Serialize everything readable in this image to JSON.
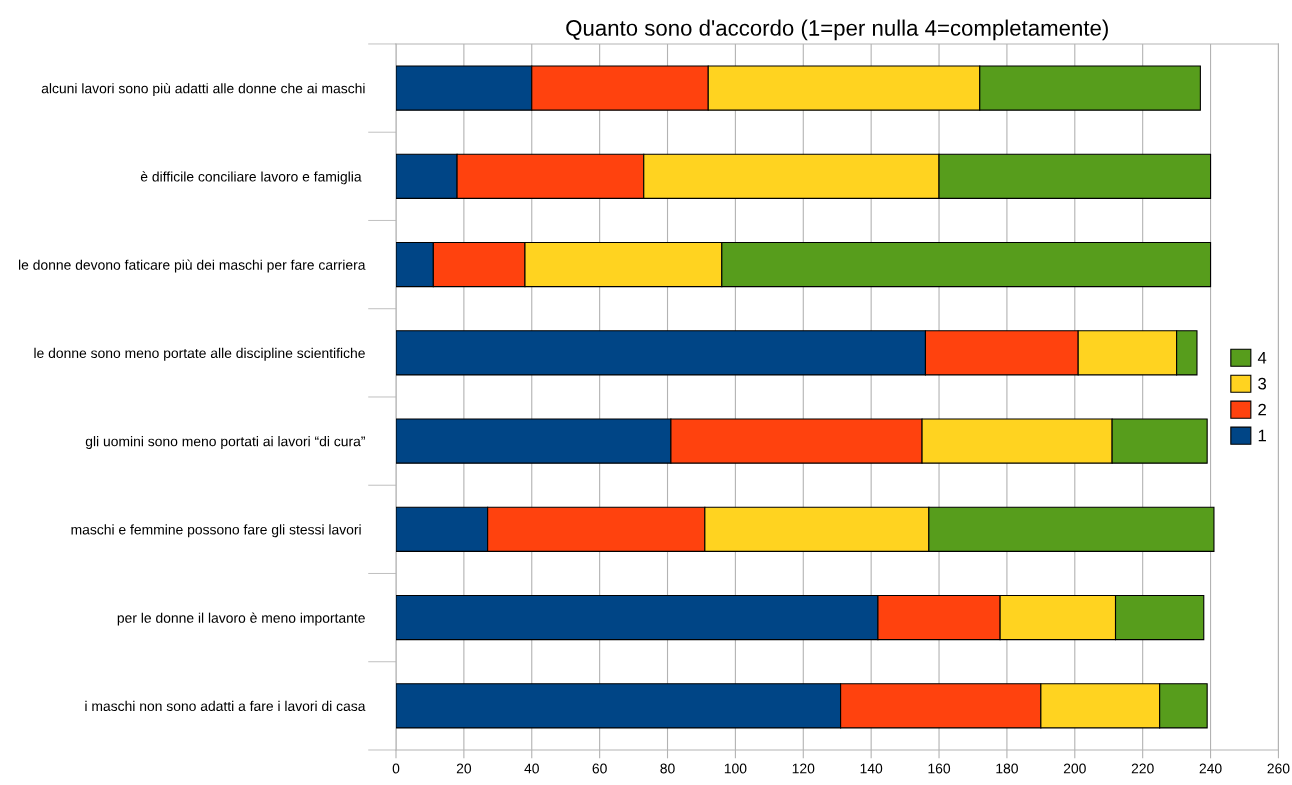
{
  "chart_data": {
    "type": "bar",
    "orientation": "horizontal",
    "stacked": true,
    "title": "Quanto sono d'accordo (1=per nulla 4=completamente)",
    "categories": [
      "alcuni lavori sono più adatti alle donne che ai maschi",
      "è difficile conciliare lavoro e famiglia ",
      "le donne devono faticare più dei maschi per fare carriera",
      "le donne sono meno portate alle discipline scientifiche",
      "gli uomini sono meno portati ai lavori “di cura”",
      "maschi e femmine possono fare gli stessi lavori ",
      "per le donne il lavoro è meno importante",
      "i maschi non sono adatti a fare i lavori di casa"
    ],
    "series": [
      {
        "name": "1",
        "color": "#004586",
        "values": [
          40,
          18,
          11,
          156,
          81,
          27,
          142,
          131
        ]
      },
      {
        "name": "2",
        "color": "#ff420e",
        "values": [
          52,
          55,
          27,
          45,
          74,
          64,
          36,
          59
        ]
      },
      {
        "name": "3",
        "color": "#ffd320",
        "values": [
          80,
          87,
          58,
          29,
          56,
          66,
          34,
          35
        ]
      },
      {
        "name": "4",
        "color": "#579d1c",
        "values": [
          65,
          80,
          144,
          6,
          28,
          84,
          26,
          14
        ]
      }
    ],
    "xlim": [
      0,
      260
    ],
    "xticks": [
      0,
      20,
      40,
      60,
      80,
      100,
      120,
      140,
      160,
      180,
      200,
      220,
      240,
      260
    ],
    "grid": "x",
    "legend": "right"
  }
}
